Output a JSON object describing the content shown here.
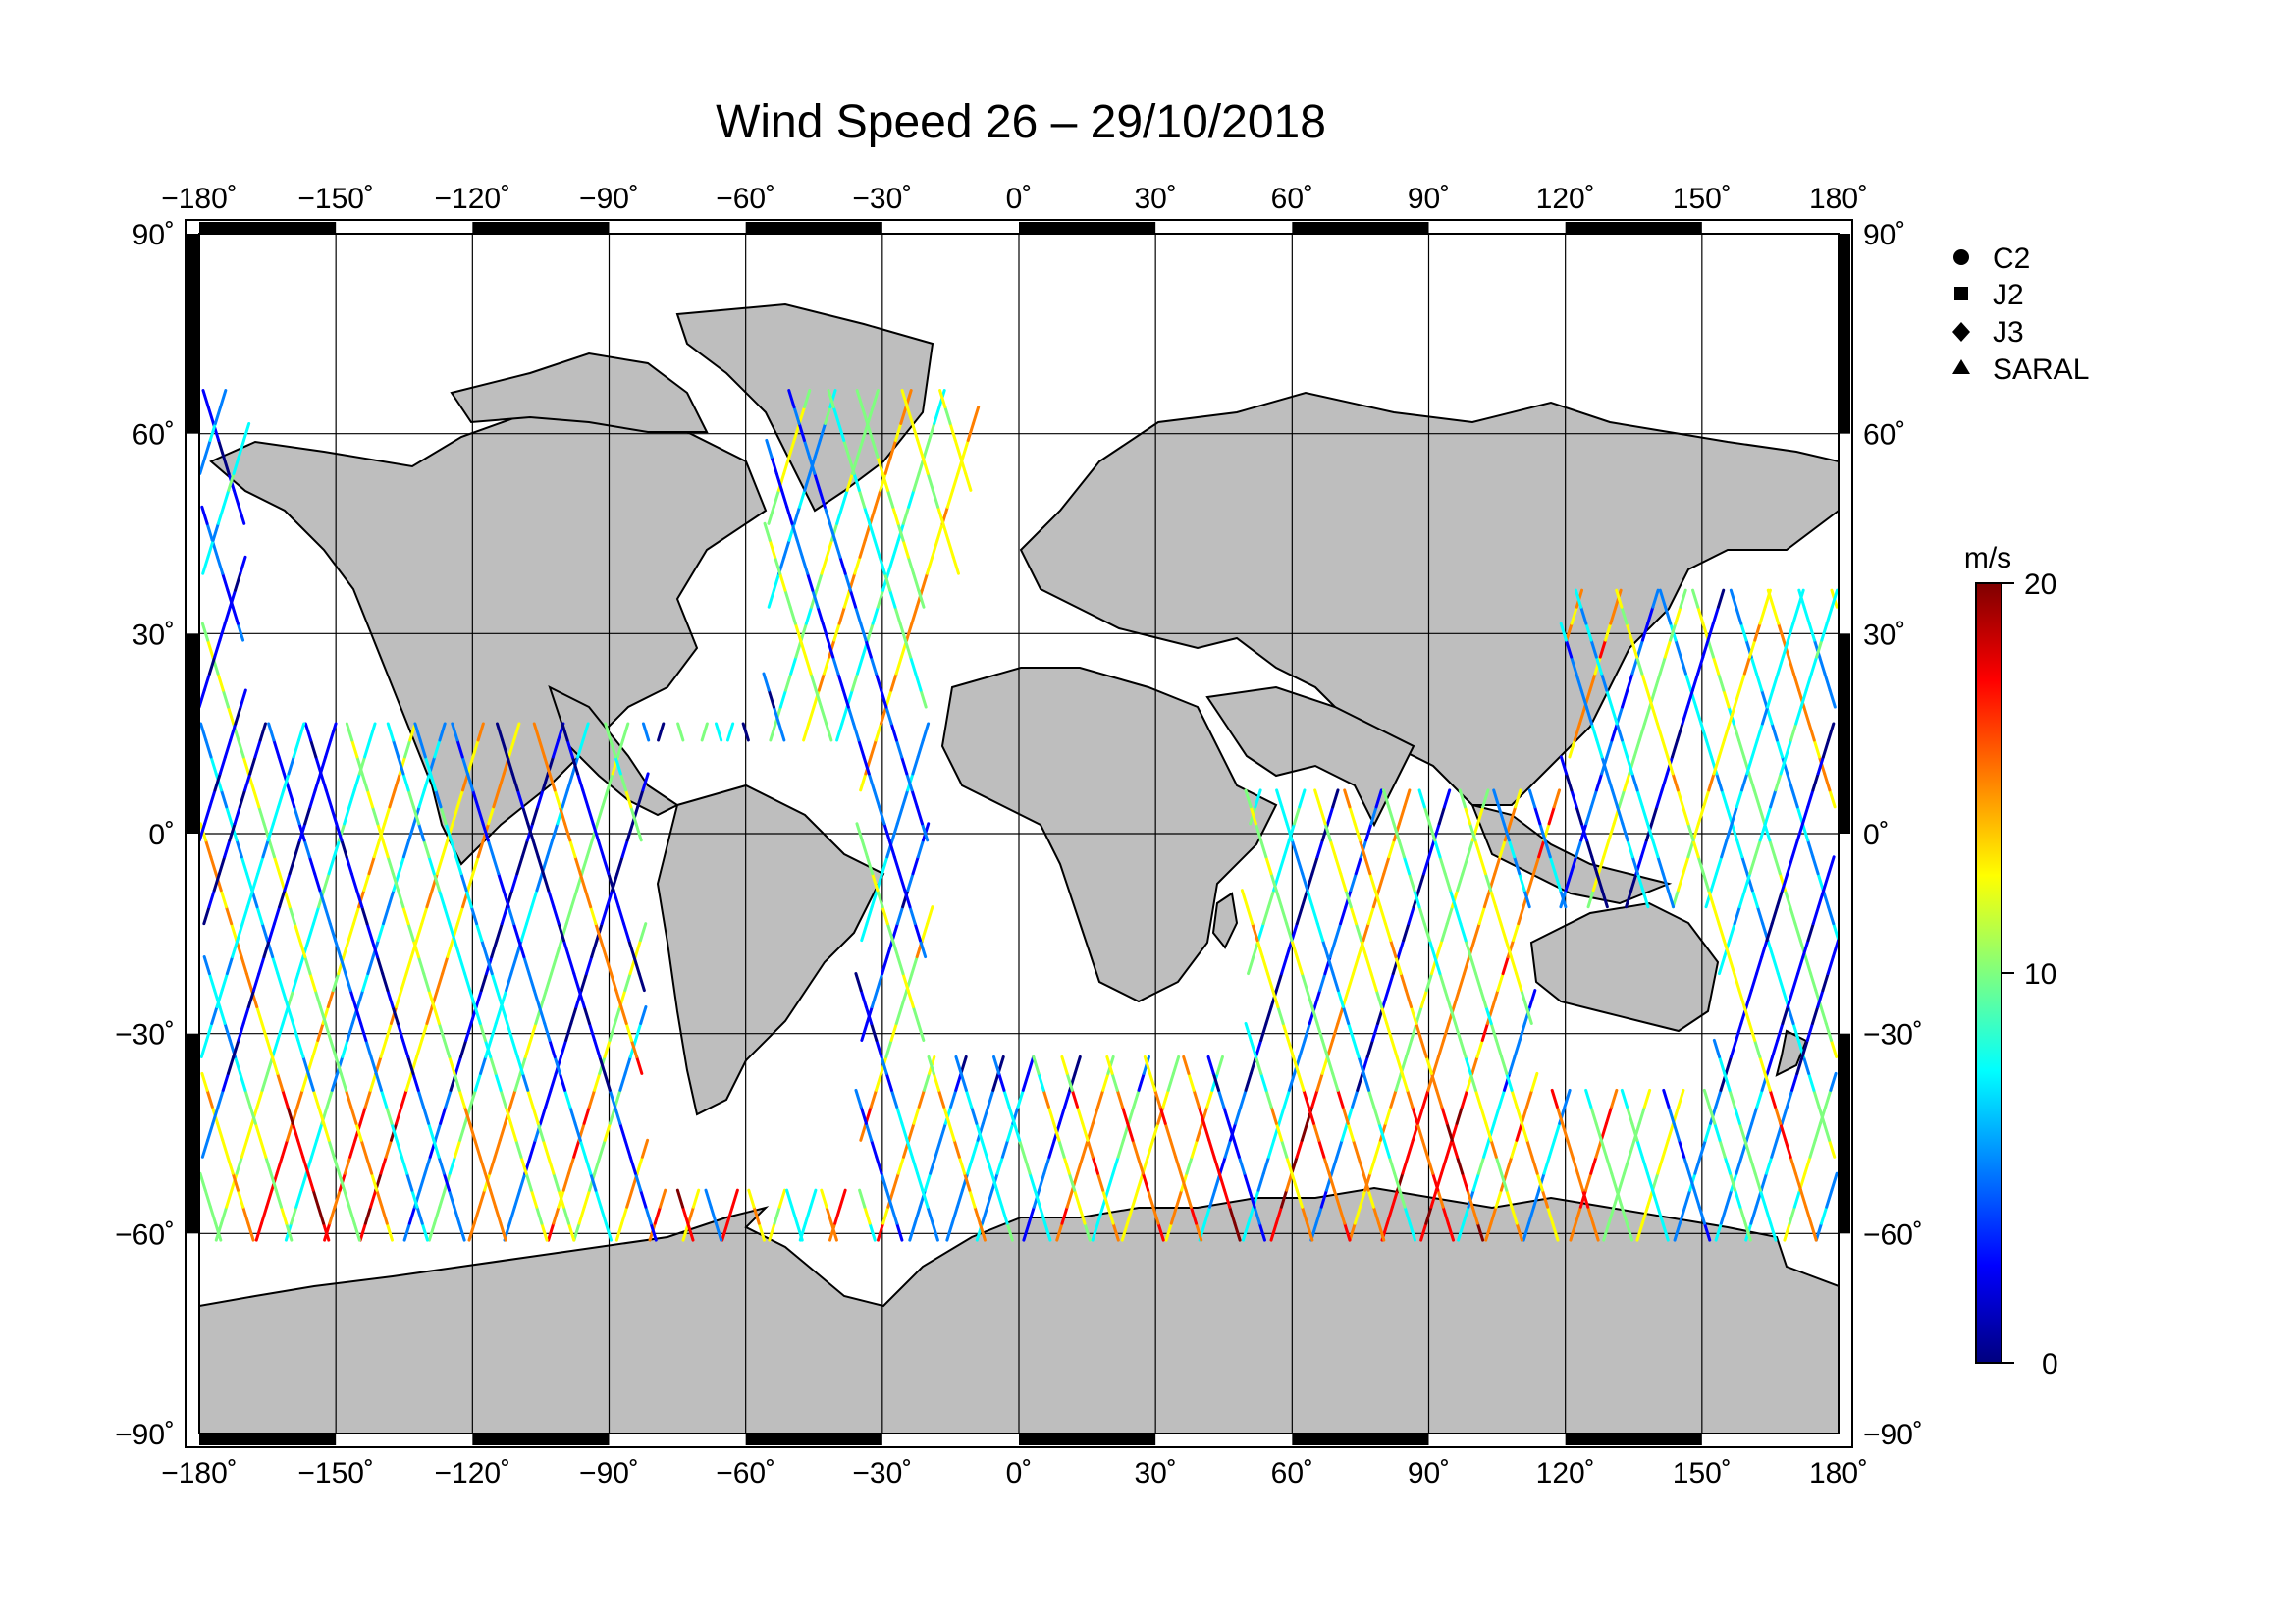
{
  "title": "Wind Speed 26 – 29/10/2018",
  "longitude_ticks": [
    -180,
    -150,
    -120,
    -90,
    -60,
    -30,
    0,
    30,
    60,
    90,
    120,
    150,
    180
  ],
  "longitude_labels": [
    "−180˚",
    "−150˚",
    "−120˚",
    "−90˚",
    "−60˚",
    "−30˚",
    "0˚",
    "30˚",
    "60˚",
    "90˚",
    "120˚",
    "150˚",
    "180˚"
  ],
  "latitude_ticks": [
    90,
    60,
    30,
    0,
    -30,
    -60,
    -90
  ],
  "latitude_labels": [
    "90˚",
    "60˚",
    "30˚",
    "0˚",
    "−30˚",
    "−60˚",
    "−90˚"
  ],
  "legend": {
    "entries": [
      {
        "label": "C2",
        "marker": "circle"
      },
      {
        "label": "J2",
        "marker": "square"
      },
      {
        "label": "J3",
        "marker": "diamond"
      },
      {
        "label": "SARAL",
        "marker": "triangle"
      }
    ]
  },
  "colorbar": {
    "unit": "m/s",
    "min": 0,
    "max": 20,
    "tick_values": [
      20,
      10,
      0
    ],
    "tick_labels": [
      "20",
      "10",
      "0"
    ],
    "colors": [
      "#00007f",
      "#0000ff",
      "#007fff",
      "#00ffff",
      "#7fff7f",
      "#ffff00",
      "#ff7f00",
      "#ff0000",
      "#7f0000"
    ]
  },
  "colors": {
    "land": "#bebebe",
    "ocean": "#ffffff",
    "coastline": "#000000"
  }
}
